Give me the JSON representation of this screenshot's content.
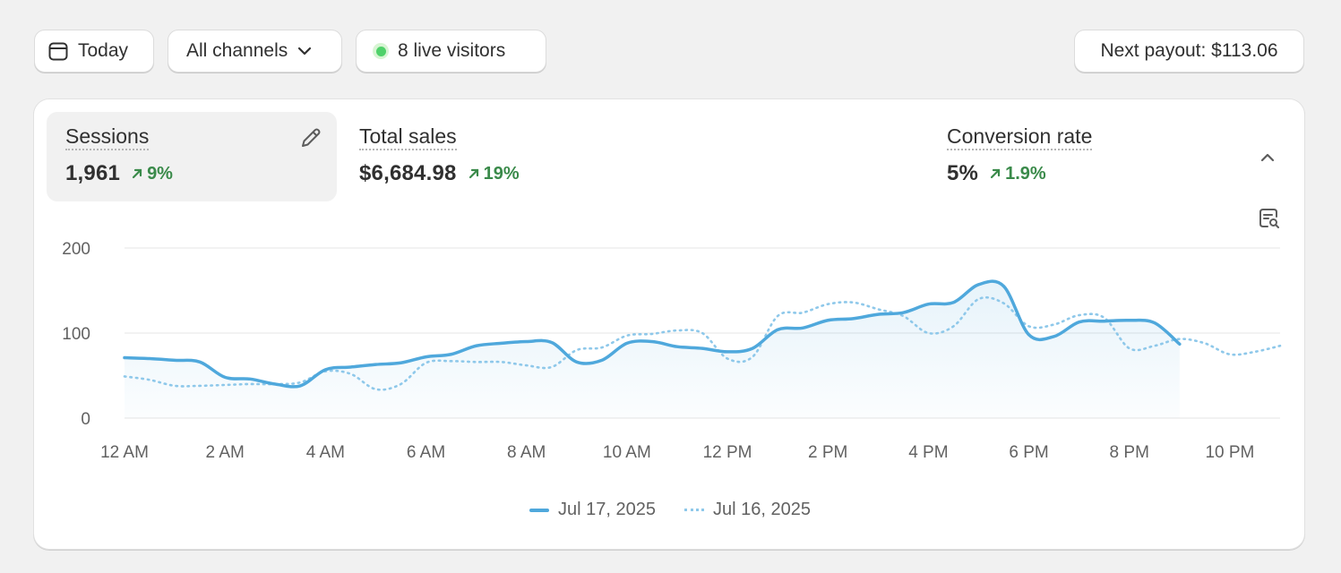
{
  "toolbar": {
    "date_label": "Today",
    "channels_label": "All channels",
    "live_visitors_label": "8 live visitors",
    "payout_label": "Next payout: $113.06"
  },
  "metrics": [
    {
      "label": "Sessions",
      "value": "1,961",
      "change": "9%"
    },
    {
      "label": "Total sales",
      "value": "$6,684.98",
      "change": "19%"
    },
    {
      "label": "Conversion rate",
      "value": "5%",
      "change": "1.9%"
    }
  ],
  "icons": {
    "calendar": "calendar-icon",
    "chevron": "chevron-down-icon",
    "live": "live-dot-icon",
    "edit": "pencil-icon",
    "collapse": "chevron-up-icon",
    "annotate": "annotation-search-icon",
    "trend": "arrow-up-right-icon"
  },
  "colors": {
    "primary_series": "#4fa8dc",
    "comparison_series": "#8ec8ea",
    "positive": "#3a8a4a",
    "live": "#4fd16a"
  },
  "chart_data": {
    "type": "line",
    "title": "Sessions",
    "xlabel": "",
    "ylabel": "",
    "ylim": [
      0,
      200
    ],
    "yticks": [
      "0",
      "100",
      "200"
    ],
    "xticks": [
      "12 AM",
      "2 AM",
      "4 AM",
      "6 AM",
      "8 AM",
      "10 AM",
      "12 PM",
      "2 PM",
      "4 PM",
      "6 PM",
      "8 PM",
      "10 PM"
    ],
    "x_range": [
      0,
      23
    ],
    "series": [
      {
        "name": "Jul 17, 2025",
        "style": "solid",
        "x": [
          0,
          0.5,
          1,
          1.5,
          2,
          2.5,
          3,
          3.5,
          4,
          4.5,
          5,
          5.5,
          6,
          6.5,
          7,
          7.5,
          8,
          8.5,
          9,
          9.5,
          10,
          10.5,
          11,
          11.5,
          12,
          12.5,
          13,
          13.5,
          14,
          14.5,
          15,
          15.5,
          16,
          16.5,
          17,
          17.5,
          18,
          18.5,
          19,
          19.5,
          20,
          20.5,
          21
        ],
        "values": [
          71,
          70,
          68,
          66,
          48,
          46,
          40,
          38,
          57,
          60,
          63,
          65,
          72,
          75,
          85,
          88,
          90,
          89,
          66,
          68,
          88,
          90,
          84,
          82,
          78,
          82,
          104,
          106,
          115,
          117,
          122,
          124,
          134,
          136,
          157,
          155,
          98,
          96,
          113,
          114,
          115,
          112,
          87
        ]
      },
      {
        "name": "Jul 16, 2025",
        "style": "dotted",
        "x": [
          0,
          0.5,
          1,
          1.5,
          2,
          2.5,
          3,
          3.5,
          4,
          4.5,
          5,
          5.5,
          6,
          6.5,
          7,
          7.5,
          8,
          8.5,
          9,
          9.5,
          10,
          10.5,
          11,
          11.5,
          12,
          12.5,
          13,
          13.5,
          14,
          14.5,
          15,
          15.5,
          16,
          16.5,
          17,
          17.5,
          18,
          18.5,
          19,
          19.5,
          20,
          20.5,
          21,
          21.5,
          22,
          22.5,
          23
        ],
        "values": [
          49,
          45,
          38,
          38,
          39,
          40,
          40,
          42,
          55,
          52,
          34,
          40,
          65,
          67,
          66,
          66,
          62,
          60,
          80,
          83,
          97,
          99,
          103,
          100,
          70,
          72,
          120,
          124,
          134,
          136,
          128,
          120,
          100,
          108,
          140,
          135,
          108,
          110,
          121,
          118,
          82,
          85,
          93,
          88,
          75,
          78,
          85
        ]
      }
    ],
    "legend": [
      "Jul 17, 2025",
      "Jul 16, 2025"
    ],
    "legend_position": "bottom"
  }
}
